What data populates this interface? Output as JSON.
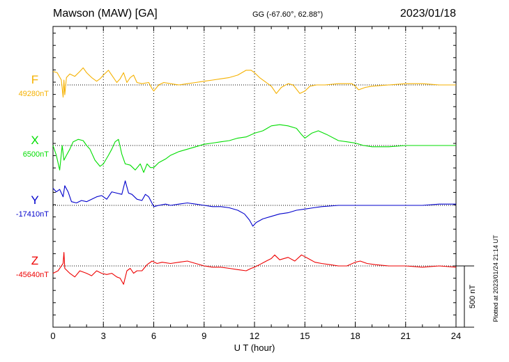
{
  "header": {
    "station": "Mawson (MAW)  [GA]",
    "coords": "GG (-67.60°,  62.88°)",
    "date": "2023/01/18"
  },
  "footer": {
    "xlabel": "U T (hour)",
    "plotted": "Plotted at 2023/01/24 21:14 UT",
    "scale_label": "500 nT"
  },
  "colors": {
    "F": "#f5b100",
    "X": "#00dd00",
    "Y": "#0000cc",
    "Z": "#ee0000",
    "axis": "#000000"
  },
  "chart_data": {
    "type": "line",
    "xlim": [
      0,
      24
    ],
    "x_ticks": [
      0,
      3,
      6,
      9,
      12,
      15,
      18,
      21,
      24
    ],
    "scale_bar_nT": 500,
    "grid": "dotted",
    "series": [
      {
        "name": "F",
        "baseline_label": "49280nT",
        "baseline_nT": 49280,
        "points": [
          [
            0,
            49390
          ],
          [
            0.25,
            49380
          ],
          [
            0.5,
            49320
          ],
          [
            0.6,
            49180
          ],
          [
            0.65,
            49320
          ],
          [
            0.7,
            49200
          ],
          [
            0.8,
            49340
          ],
          [
            1.0,
            49370
          ],
          [
            1.3,
            49350
          ],
          [
            1.6,
            49390
          ],
          [
            1.8,
            49420
          ],
          [
            2.0,
            49380
          ],
          [
            2.3,
            49340
          ],
          [
            2.6,
            49310
          ],
          [
            2.8,
            49330
          ],
          [
            3.0,
            49360
          ],
          [
            3.3,
            49400
          ],
          [
            3.5,
            49360
          ],
          [
            3.8,
            49300
          ],
          [
            4.0,
            49330
          ],
          [
            4.2,
            49380
          ],
          [
            4.4,
            49300
          ],
          [
            4.6,
            49340
          ],
          [
            4.8,
            49360
          ],
          [
            5.0,
            49300
          ],
          [
            5.3,
            49290
          ],
          [
            5.7,
            49300
          ],
          [
            5.9,
            49250
          ],
          [
            6.0,
            49230
          ],
          [
            6.3,
            49280
          ],
          [
            6.6,
            49300
          ],
          [
            7.0,
            49290
          ],
          [
            7.5,
            49280
          ],
          [
            8.0,
            49290
          ],
          [
            8.5,
            49300
          ],
          [
            9.0,
            49310
          ],
          [
            9.5,
            49320
          ],
          [
            10.0,
            49330
          ],
          [
            10.5,
            49340
          ],
          [
            11.0,
            49360
          ],
          [
            11.5,
            49400
          ],
          [
            11.8,
            49400
          ],
          [
            12.0,
            49380
          ],
          [
            12.3,
            49340
          ],
          [
            12.6,
            49310
          ],
          [
            13.0,
            49270
          ],
          [
            13.3,
            49210
          ],
          [
            13.6,
            49260
          ],
          [
            14.0,
            49290
          ],
          [
            14.3,
            49280
          ],
          [
            14.7,
            49210
          ],
          [
            15.0,
            49230
          ],
          [
            15.3,
            49270
          ],
          [
            15.7,
            49280
          ],
          [
            16.2,
            49280
          ],
          [
            17.0,
            49290
          ],
          [
            17.8,
            49290
          ],
          [
            18.0,
            49270
          ],
          [
            18.2,
            49240
          ],
          [
            18.6,
            49260
          ],
          [
            19.0,
            49270
          ],
          [
            20.0,
            49280
          ],
          [
            21.0,
            49290
          ],
          [
            22.0,
            49290
          ],
          [
            23.0,
            49280
          ],
          [
            24.0,
            49280
          ]
        ]
      },
      {
        "name": "X",
        "baseline_label": "6500nT",
        "baseline_nT": 6500,
        "points": [
          [
            0,
            6500
          ],
          [
            0.2,
            6420
          ],
          [
            0.4,
            6300
          ],
          [
            0.55,
            6500
          ],
          [
            0.65,
            6380
          ],
          [
            0.8,
            6420
          ],
          [
            1.0,
            6470
          ],
          [
            1.2,
            6530
          ],
          [
            1.5,
            6550
          ],
          [
            1.8,
            6540
          ],
          [
            2.0,
            6500
          ],
          [
            2.2,
            6470
          ],
          [
            2.5,
            6380
          ],
          [
            2.8,
            6330
          ],
          [
            3.0,
            6350
          ],
          [
            3.3,
            6420
          ],
          [
            3.5,
            6470
          ],
          [
            3.7,
            6530
          ],
          [
            3.9,
            6550
          ],
          [
            4.1,
            6430
          ],
          [
            4.3,
            6350
          ],
          [
            4.6,
            6340
          ],
          [
            4.9,
            6300
          ],
          [
            5.2,
            6350
          ],
          [
            5.4,
            6280
          ],
          [
            5.6,
            6350
          ],
          [
            5.8,
            6320
          ],
          [
            6.0,
            6320
          ],
          [
            6.3,
            6360
          ],
          [
            6.7,
            6390
          ],
          [
            7.0,
            6420
          ],
          [
            7.5,
            6450
          ],
          [
            8.0,
            6470
          ],
          [
            8.5,
            6490
          ],
          [
            9.0,
            6510
          ],
          [
            9.5,
            6520
          ],
          [
            10.0,
            6530
          ],
          [
            10.5,
            6540
          ],
          [
            11.0,
            6560
          ],
          [
            11.5,
            6570
          ],
          [
            12.0,
            6600
          ],
          [
            12.5,
            6620
          ],
          [
            13.0,
            6660
          ],
          [
            13.5,
            6670
          ],
          [
            14.0,
            6660
          ],
          [
            14.5,
            6640
          ],
          [
            14.8,
            6590
          ],
          [
            15.0,
            6560
          ],
          [
            15.4,
            6600
          ],
          [
            15.8,
            6620
          ],
          [
            16.3,
            6590
          ],
          [
            17.0,
            6540
          ],
          [
            17.5,
            6530
          ],
          [
            18.0,
            6520
          ],
          [
            18.5,
            6500
          ],
          [
            19.0,
            6490
          ],
          [
            20.0,
            6490
          ],
          [
            21.0,
            6500
          ],
          [
            22.0,
            6500
          ],
          [
            23.0,
            6500
          ],
          [
            24.0,
            6500
          ]
        ]
      },
      {
        "name": "Y",
        "baseline_label": "-17410nT",
        "baseline_nT": -17410,
        "points": [
          [
            0,
            -17270
          ],
          [
            0.2,
            -17300
          ],
          [
            0.4,
            -17280
          ],
          [
            0.6,
            -17340
          ],
          [
            0.7,
            -17250
          ],
          [
            0.9,
            -17300
          ],
          [
            1.1,
            -17380
          ],
          [
            1.4,
            -17390
          ],
          [
            1.7,
            -17370
          ],
          [
            2.0,
            -17380
          ],
          [
            2.3,
            -17360
          ],
          [
            2.6,
            -17340
          ],
          [
            2.9,
            -17330
          ],
          [
            3.2,
            -17360
          ],
          [
            3.5,
            -17300
          ],
          [
            3.8,
            -17310
          ],
          [
            4.1,
            -17320
          ],
          [
            4.3,
            -17210
          ],
          [
            4.5,
            -17310
          ],
          [
            4.7,
            -17320
          ],
          [
            5.0,
            -17360
          ],
          [
            5.3,
            -17370
          ],
          [
            5.5,
            -17320
          ],
          [
            5.7,
            -17340
          ],
          [
            6.0,
            -17420
          ],
          [
            6.3,
            -17410
          ],
          [
            6.7,
            -17400
          ],
          [
            7.0,
            -17410
          ],
          [
            7.5,
            -17400
          ],
          [
            8.0,
            -17390
          ],
          [
            8.5,
            -17400
          ],
          [
            9.0,
            -17410
          ],
          [
            9.5,
            -17420
          ],
          [
            10.0,
            -17420
          ],
          [
            10.5,
            -17430
          ],
          [
            11.0,
            -17450
          ],
          [
            11.4,
            -17480
          ],
          [
            11.7,
            -17530
          ],
          [
            11.9,
            -17580
          ],
          [
            12.1,
            -17550
          ],
          [
            12.5,
            -17520
          ],
          [
            13.0,
            -17500
          ],
          [
            13.5,
            -17480
          ],
          [
            14.0,
            -17470
          ],
          [
            14.5,
            -17450
          ],
          [
            15.0,
            -17440
          ],
          [
            15.5,
            -17430
          ],
          [
            16.0,
            -17420
          ],
          [
            17.0,
            -17410
          ],
          [
            18.0,
            -17410
          ],
          [
            19.0,
            -17410
          ],
          [
            20.0,
            -17410
          ],
          [
            21.0,
            -17410
          ],
          [
            22.0,
            -17410
          ],
          [
            23.0,
            -17400
          ],
          [
            24.0,
            -17400
          ]
        ]
      },
      {
        "name": "Z",
        "baseline_label": "-45640nT",
        "baseline_nT": -45640,
        "points": [
          [
            0,
            -45700
          ],
          [
            0.3,
            -45680
          ],
          [
            0.6,
            -45620
          ],
          [
            0.65,
            -45530
          ],
          [
            0.7,
            -45660
          ],
          [
            1.0,
            -45700
          ],
          [
            1.3,
            -45730
          ],
          [
            1.6,
            -45680
          ],
          [
            2.0,
            -45700
          ],
          [
            2.3,
            -45720
          ],
          [
            2.6,
            -45680
          ],
          [
            2.9,
            -45700
          ],
          [
            3.2,
            -45710
          ],
          [
            3.5,
            -45700
          ],
          [
            3.8,
            -45730
          ],
          [
            4.0,
            -45740
          ],
          [
            4.2,
            -45790
          ],
          [
            4.4,
            -45680
          ],
          [
            4.6,
            -45660
          ],
          [
            4.8,
            -45700
          ],
          [
            5.0,
            -45680
          ],
          [
            5.3,
            -45680
          ],
          [
            5.6,
            -45630
          ],
          [
            5.9,
            -45600
          ],
          [
            6.2,
            -45620
          ],
          [
            6.5,
            -45610
          ],
          [
            7.0,
            -45620
          ],
          [
            7.5,
            -45610
          ],
          [
            8.0,
            -45600
          ],
          [
            8.5,
            -45620
          ],
          [
            9.0,
            -45640
          ],
          [
            9.5,
            -45650
          ],
          [
            10.0,
            -45650
          ],
          [
            10.5,
            -45660
          ],
          [
            11.0,
            -45670
          ],
          [
            11.5,
            -45680
          ],
          [
            11.8,
            -45660
          ],
          [
            12.0,
            -45650
          ],
          [
            12.3,
            -45630
          ],
          [
            12.7,
            -45600
          ],
          [
            13.0,
            -45580
          ],
          [
            13.2,
            -45550
          ],
          [
            13.5,
            -45590
          ],
          [
            14.0,
            -45570
          ],
          [
            14.4,
            -45600
          ],
          [
            14.8,
            -45550
          ],
          [
            15.2,
            -45580
          ],
          [
            15.6,
            -45610
          ],
          [
            16.0,
            -45620
          ],
          [
            16.5,
            -45630
          ],
          [
            17.0,
            -45640
          ],
          [
            17.5,
            -45640
          ],
          [
            18.0,
            -45610
          ],
          [
            18.3,
            -45600
          ],
          [
            18.7,
            -45620
          ],
          [
            19.2,
            -45630
          ],
          [
            20.0,
            -45640
          ],
          [
            21.0,
            -45640
          ],
          [
            22.0,
            -45650
          ],
          [
            23.0,
            -45640
          ],
          [
            24.0,
            -45650
          ]
        ]
      }
    ]
  }
}
